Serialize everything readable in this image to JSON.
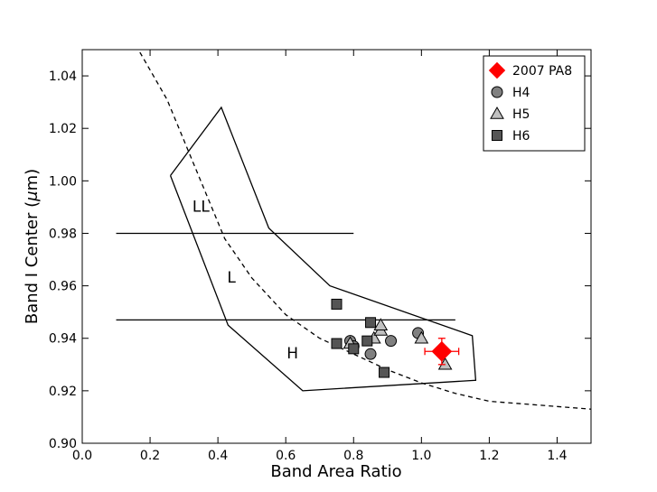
{
  "chart_data": {
    "type": "scatter",
    "xlabel": "Band Area Ratio",
    "ylabel_prefix": "Band I Center (",
    "ylabel_unit": "μ",
    "ylabel_suffix": "m)",
    "xlim": [
      0.0,
      1.5
    ],
    "ylim": [
      0.9,
      1.05
    ],
    "xticks": [
      "0.0",
      "0.2",
      "0.4",
      "0.6",
      "0.8",
      "1.0",
      "1.2",
      "1.4"
    ],
    "yticks": [
      "0.90",
      "0.92",
      "0.94",
      "0.96",
      "0.98",
      "1.00",
      "1.02",
      "1.04"
    ],
    "grid": false,
    "legend_position": "top-right",
    "series": [
      {
        "name": "2007 PA8",
        "marker": "diamond",
        "color": "#ff0000",
        "points": [
          {
            "x": 1.06,
            "y": 0.935,
            "xerr": 0.05,
            "yerr": 0.005
          }
        ]
      },
      {
        "name": "H4",
        "marker": "circle",
        "color": "#808080",
        "points": [
          {
            "x": 0.79,
            "y": 0.939
          },
          {
            "x": 0.8,
            "y": 0.937
          },
          {
            "x": 0.85,
            "y": 0.934
          },
          {
            "x": 0.91,
            "y": 0.939
          },
          {
            "x": 0.99,
            "y": 0.942
          }
        ]
      },
      {
        "name": "H5",
        "marker": "triangle",
        "color": "#c0c0c0",
        "points": [
          {
            "x": 0.79,
            "y": 0.938
          },
          {
            "x": 0.86,
            "y": 0.94
          },
          {
            "x": 0.88,
            "y": 0.943
          },
          {
            "x": 0.88,
            "y": 0.945
          },
          {
            "x": 1.0,
            "y": 0.94
          },
          {
            "x": 1.07,
            "y": 0.93
          }
        ]
      },
      {
        "name": "H6",
        "marker": "square",
        "color": "#555555",
        "points": [
          {
            "x": 0.75,
            "y": 0.953
          },
          {
            "x": 0.75,
            "y": 0.938
          },
          {
            "x": 0.8,
            "y": 0.936
          },
          {
            "x": 0.84,
            "y": 0.939
          },
          {
            "x": 0.85,
            "y": 0.946
          },
          {
            "x": 0.89,
            "y": 0.927
          }
        ]
      }
    ],
    "polygon": [
      [
        0.26,
        1.002
      ],
      [
        0.41,
        1.028
      ],
      [
        0.55,
        0.982
      ],
      [
        0.73,
        0.96
      ],
      [
        1.15,
        0.941
      ],
      [
        1.16,
        0.924
      ],
      [
        0.65,
        0.92
      ],
      [
        0.43,
        0.945
      ],
      [
        0.26,
        1.002
      ]
    ],
    "hlines": [
      {
        "y": 0.98,
        "x0": 0.1,
        "x1": 0.8
      },
      {
        "y": 0.947,
        "x0": 0.1,
        "x1": 1.1
      }
    ],
    "dashed_curve": [
      [
        0.17,
        1.049
      ],
      [
        0.25,
        1.031
      ],
      [
        0.33,
        1.006
      ],
      [
        0.42,
        0.978
      ],
      [
        0.5,
        0.963
      ],
      [
        0.6,
        0.949
      ],
      [
        0.7,
        0.94
      ],
      [
        0.8,
        0.934
      ],
      [
        0.9,
        0.928
      ],
      [
        1.0,
        0.923
      ],
      [
        1.1,
        0.919
      ],
      [
        1.2,
        0.916
      ],
      [
        1.3,
        0.915
      ],
      [
        1.4,
        0.914
      ],
      [
        1.5,
        0.913
      ]
    ],
    "region_labels": [
      {
        "text": "LL",
        "x": 0.35,
        "y": 0.99
      },
      {
        "text": "L",
        "x": 0.44,
        "y": 0.963
      },
      {
        "text": "H",
        "x": 0.62,
        "y": 0.934
      }
    ]
  }
}
